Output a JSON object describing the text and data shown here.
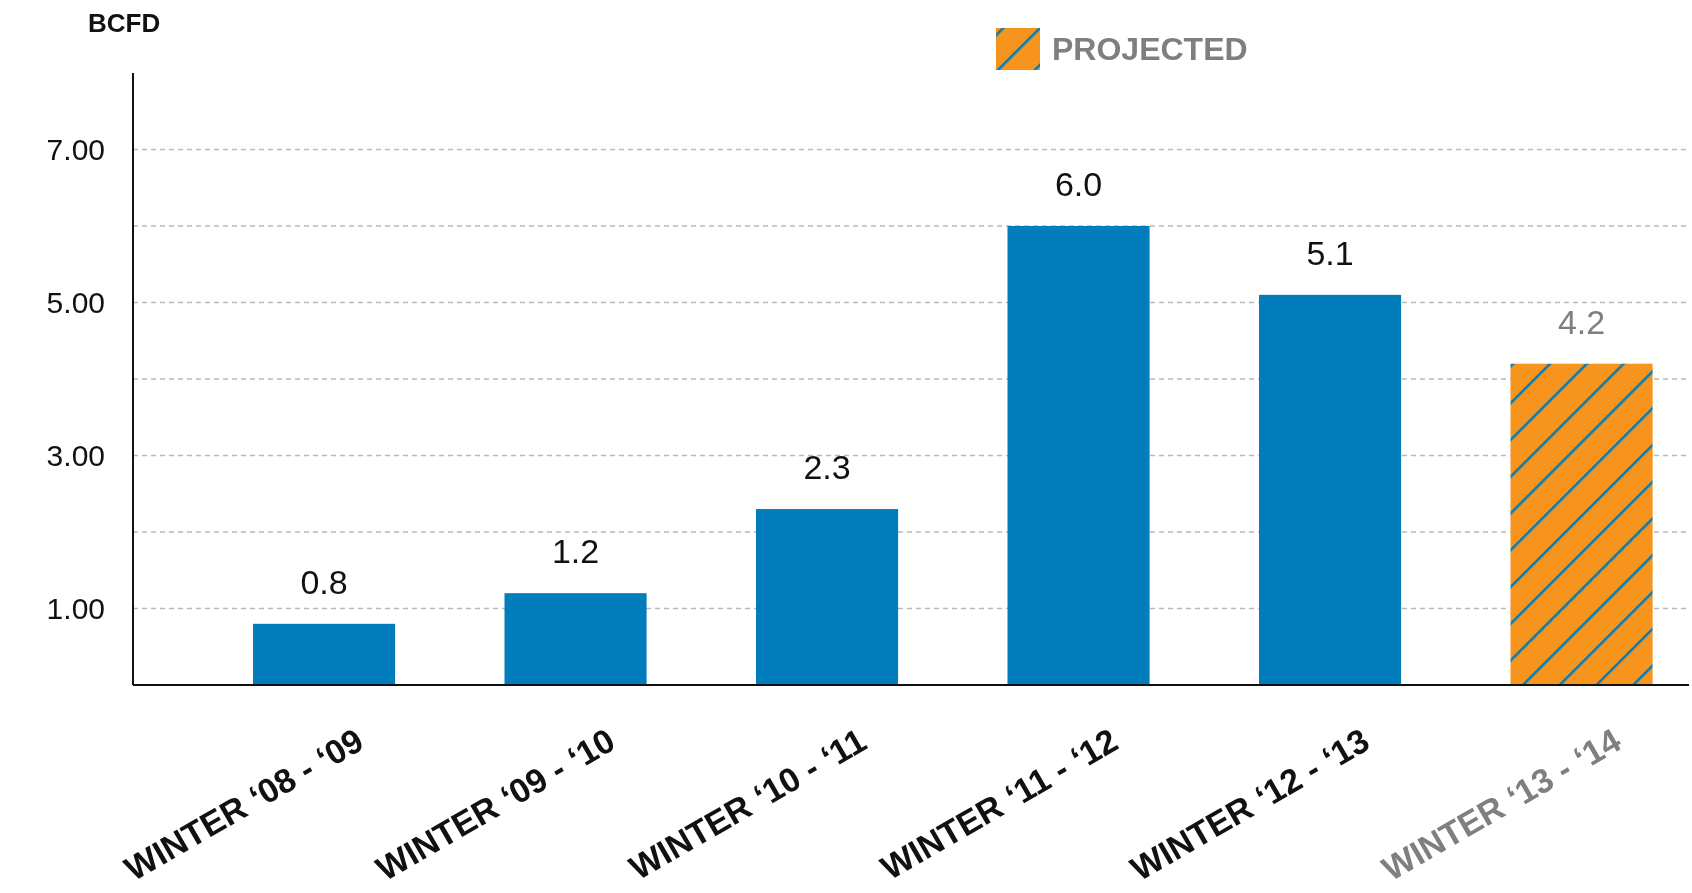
{
  "chart_data": {
    "type": "bar",
    "ylabel": "BCFD",
    "categories": [
      "WINTER ‘08 - ‘09",
      "WINTER ‘09 - ‘10",
      "WINTER ‘10 - ‘11",
      "WINTER ‘11 - ‘12",
      "WINTER ‘12 - ‘13",
      "WINTER ‘13 - ‘14"
    ],
    "series": [
      {
        "color": "#007dba",
        "values": [
          0.8,
          1.2,
          2.3,
          6.0,
          5.1,
          null
        ],
        "value_labels": [
          "0.8",
          "1.2",
          "2.3",
          "6.0",
          "5.1",
          null
        ]
      },
      {
        "name": "PROJECTED",
        "color": "#f7941d",
        "values": [
          null,
          null,
          null,
          null,
          null,
          4.2
        ],
        "value_labels": [
          null,
          null,
          null,
          null,
          null,
          "4.2"
        ]
      }
    ],
    "stacked": true,
    "ylim": [
      0,
      8
    ],
    "yticks": [
      {
        "value": 1,
        "label": "1.00"
      },
      {
        "value": 2,
        "label": null
      },
      {
        "value": 3,
        "label": "3.00"
      },
      {
        "value": 4,
        "label": null
      },
      {
        "value": 5,
        "label": "5.00"
      },
      {
        "value": 6,
        "label": null
      },
      {
        "value": 7,
        "label": "7.00"
      }
    ],
    "grid": "y",
    "legend": "top"
  }
}
